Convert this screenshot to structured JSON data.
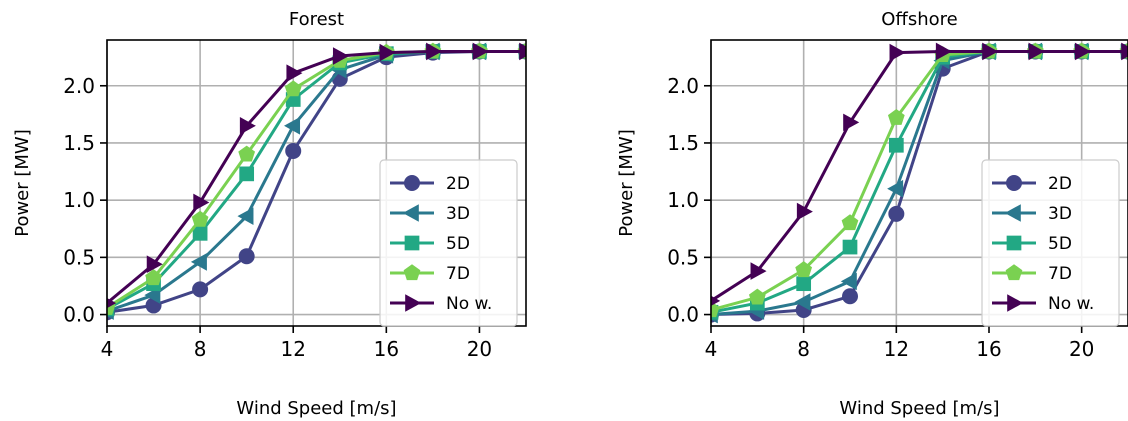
{
  "chart_data": [
    {
      "type": "line",
      "title": "Forest",
      "xlabel": "Wind Speed [m/s]",
      "ylabel": "Power [MW]",
      "xlim": [
        4,
        22
      ],
      "ylim": [
        -0.1,
        2.4
      ],
      "xticks": [
        4,
        8,
        12,
        16,
        20
      ],
      "yticks": [
        0.0,
        0.5,
        1.0,
        1.5,
        2.0
      ],
      "xtick_labels": [
        "4",
        "8",
        "12",
        "16",
        "20"
      ],
      "ytick_labels": [
        "0.0",
        "0.5",
        "1.0",
        "1.5",
        "2.0"
      ],
      "grid": true,
      "legend_position": "lower-right",
      "x": [
        4,
        6,
        8,
        10,
        12,
        14,
        16,
        18,
        20,
        22
      ],
      "series": [
        {
          "name": "2D",
          "marker": "circle",
          "color": "#414487",
          "values": [
            0.02,
            0.08,
            0.22,
            0.51,
            1.43,
            2.06,
            2.25,
            2.29,
            2.3,
            2.3
          ]
        },
        {
          "name": "3D",
          "marker": "triangle-left",
          "color": "#2a788e",
          "values": [
            0.03,
            0.17,
            0.46,
            0.86,
            1.65,
            2.14,
            2.27,
            2.3,
            2.3,
            2.3
          ]
        },
        {
          "name": "5D",
          "marker": "square",
          "color": "#22a884",
          "values": [
            0.05,
            0.27,
            0.71,
            1.23,
            1.88,
            2.2,
            2.28,
            2.3,
            2.3,
            2.3
          ]
        },
        {
          "name": "7D",
          "marker": "pentagon",
          "color": "#7ad151",
          "values": [
            0.06,
            0.32,
            0.83,
            1.4,
            1.97,
            2.22,
            2.29,
            2.3,
            2.3,
            2.3
          ]
        },
        {
          "name": "No w.",
          "marker": "triangle-right",
          "color": "#440154",
          "values": [
            0.1,
            0.44,
            0.98,
            1.65,
            2.11,
            2.26,
            2.29,
            2.3,
            2.3,
            2.3
          ]
        }
      ]
    },
    {
      "type": "line",
      "title": "Offshore",
      "xlabel": "Wind Speed [m/s]",
      "ylabel": "Power [MW]",
      "xlim": [
        4,
        22
      ],
      "ylim": [
        -0.1,
        2.4
      ],
      "xticks": [
        4,
        8,
        12,
        16,
        20
      ],
      "yticks": [
        0.0,
        0.5,
        1.0,
        1.5,
        2.0
      ],
      "xtick_labels": [
        "4",
        "8",
        "12",
        "16",
        "20"
      ],
      "ytick_labels": [
        "0.0",
        "0.5",
        "1.0",
        "1.5",
        "2.0"
      ],
      "grid": true,
      "legend_position": "lower-right",
      "x": [
        4,
        6,
        8,
        10,
        12,
        14,
        16,
        18,
        20,
        22
      ],
      "series": [
        {
          "name": "2D",
          "marker": "circle",
          "color": "#414487",
          "values": [
            0.0,
            0.01,
            0.04,
            0.16,
            0.88,
            2.15,
            2.3,
            2.3,
            2.3,
            2.3
          ]
        },
        {
          "name": "3D",
          "marker": "triangle-left",
          "color": "#2a788e",
          "values": [
            0.0,
            0.03,
            0.11,
            0.29,
            1.1,
            2.22,
            2.3,
            2.3,
            2.3,
            2.3
          ]
        },
        {
          "name": "5D",
          "marker": "square",
          "color": "#22a884",
          "values": [
            0.02,
            0.1,
            0.27,
            0.59,
            1.48,
            2.25,
            2.3,
            2.3,
            2.3,
            2.3
          ]
        },
        {
          "name": "7D",
          "marker": "pentagon",
          "color": "#7ad151",
          "values": [
            0.04,
            0.15,
            0.39,
            0.8,
            1.72,
            2.27,
            2.3,
            2.3,
            2.3,
            2.3
          ]
        },
        {
          "name": "No w.",
          "marker": "triangle-right",
          "color": "#440154",
          "values": [
            0.12,
            0.38,
            0.9,
            1.68,
            2.29,
            2.3,
            2.3,
            2.3,
            2.3,
            2.3
          ]
        }
      ]
    }
  ]
}
